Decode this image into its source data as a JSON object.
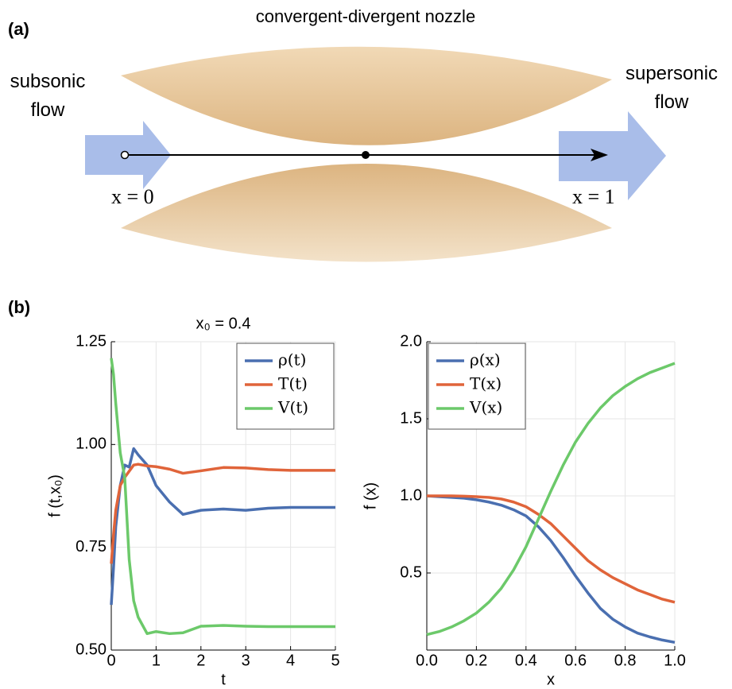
{
  "panel_labels": [
    "(a)",
    "(b)"
  ],
  "diagram": {
    "title": "convergent-divergent nozzle",
    "inlet_label": "subsonic flow",
    "outlet_label": "supersonic flow",
    "start_label": "x = 0",
    "end_label": "x = 1"
  },
  "chart_data": [
    {
      "type": "line",
      "title": "x₀ = 0.4",
      "xlabel": "t",
      "ylabel": "f (t,x₀)",
      "x": [
        0,
        0.05,
        0.1,
        0.2,
        0.3,
        0.4,
        0.5,
        0.6,
        0.8,
        1.0,
        1.3,
        1.6,
        2,
        2.5,
        3,
        3.5,
        4,
        4.5,
        5
      ],
      "series": [
        {
          "name": "ρ(t)",
          "color": "#4a6fb0",
          "values": [
            0.61,
            0.7,
            0.8,
            0.9,
            0.95,
            0.945,
            0.99,
            0.975,
            0.95,
            0.9,
            0.86,
            0.83,
            0.84,
            0.843,
            0.84,
            0.845,
            0.847,
            0.847,
            0.847
          ]
        },
        {
          "name": "T(t)",
          "color": "#e0643a",
          "values": [
            0.71,
            0.78,
            0.84,
            0.9,
            0.92,
            0.935,
            0.95,
            0.952,
            0.948,
            0.946,
            0.94,
            0.93,
            0.936,
            0.944,
            0.943,
            0.939,
            0.937,
            0.937,
            0.937
          ]
        },
        {
          "name": "V(t)",
          "color": "#6cc96a",
          "values": [
            1.21,
            1.17,
            1.1,
            0.98,
            0.92,
            0.72,
            0.62,
            0.58,
            0.54,
            0.545,
            0.54,
            0.542,
            0.558,
            0.56,
            0.558,
            0.557,
            0.557,
            0.557,
            0.557
          ]
        }
      ],
      "xlim": [
        0,
        5
      ],
      "xticks": [
        0,
        1,
        2,
        3,
        4,
        5
      ],
      "ylim": [
        0.5,
        1.25
      ],
      "yticks": [
        {
          "value": 0.5,
          "label": "0.50"
        },
        0.75,
        {
          "value": 1,
          "label": "1.00"
        },
        1.25
      ],
      "grid": true,
      "legend": "upper right"
    },
    {
      "type": "line",
      "xlabel": "x",
      "ylabel": "f (x)",
      "x": [
        0,
        0.05,
        0.1,
        0.15,
        0.2,
        0.25,
        0.3,
        0.35,
        0.4,
        0.45,
        0.5,
        0.55,
        0.6,
        0.65,
        0.7,
        0.75,
        0.8,
        0.85,
        0.9,
        0.95,
        1.0
      ],
      "series": [
        {
          "name": "ρ(x)",
          "color": "#4a6fb0",
          "values": [
            1.0,
            0.995,
            0.99,
            0.985,
            0.975,
            0.96,
            0.94,
            0.91,
            0.87,
            0.8,
            0.71,
            0.6,
            0.48,
            0.37,
            0.27,
            0.2,
            0.15,
            0.11,
            0.085,
            0.065,
            0.05
          ]
        },
        {
          "name": "T(x)",
          "color": "#e0643a",
          "values": [
            1.0,
            1.0,
            1.0,
            0.998,
            0.995,
            0.99,
            0.98,
            0.96,
            0.93,
            0.88,
            0.82,
            0.74,
            0.66,
            0.58,
            0.52,
            0.47,
            0.43,
            0.39,
            0.36,
            0.33,
            0.31
          ]
        },
        {
          "name": "V(x)",
          "color": "#6cc96a",
          "values": [
            0.1,
            0.12,
            0.15,
            0.19,
            0.24,
            0.31,
            0.4,
            0.52,
            0.67,
            0.85,
            1.03,
            1.2,
            1.35,
            1.47,
            1.57,
            1.65,
            1.71,
            1.76,
            1.8,
            1.83,
            1.86
          ]
        }
      ],
      "xlim": [
        0,
        1
      ],
      "xticks": [
        {
          "value": 0,
          "label": "0.0"
        },
        0.2,
        0.4,
        0.6,
        0.8,
        {
          "value": 1,
          "label": "1.0"
        }
      ],
      "ylim": [
        0,
        2
      ],
      "yticks": [
        0.5,
        {
          "value": 1,
          "label": "1.0"
        },
        1.5,
        {
          "value": 2,
          "label": "2.0"
        }
      ],
      "grid": true,
      "legend": "upper left"
    }
  ]
}
